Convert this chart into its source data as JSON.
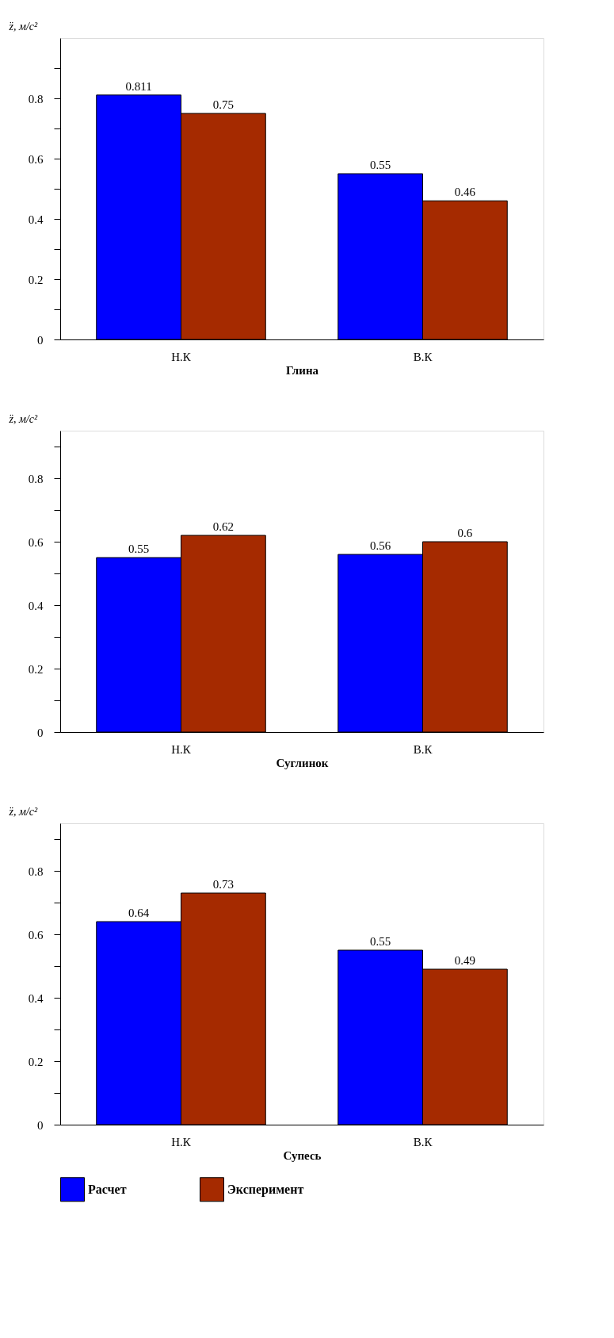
{
  "chart_data": [
    {
      "type": "bar",
      "ylabel": "z̈, м/с²",
      "xlabel": "Глина",
      "categories": [
        "Н.К",
        "В.К"
      ],
      "series": [
        {
          "color": "#0000ff",
          "values": [
            0.811,
            0.55
          ]
        },
        {
          "color": "#a52a00",
          "values": [
            0.75,
            0.46
          ]
        }
      ],
      "ylim": [
        0,
        1.0
      ],
      "yticks": [
        0,
        {
          "value": 0.1,
          "label": null
        },
        0.2,
        {
          "value": 0.3,
          "label": null
        },
        0.4,
        {
          "value": 0.5,
          "label": null
        },
        0.6,
        {
          "value": 0.7,
          "label": null
        },
        0.8,
        {
          "value": 0.9,
          "label": null
        }
      ],
      "data_labels": true,
      "grid": false,
      "legend": false
    },
    {
      "type": "bar",
      "ylabel": "z̈, м/с²",
      "xlabel": "Суглинок",
      "categories": [
        "Н.К",
        "В.К"
      ],
      "series": [
        {
          "color": "#0000ff",
          "values": [
            0.55,
            0.56
          ]
        },
        {
          "color": "#a52a00",
          "values": [
            0.62,
            0.6
          ]
        }
      ],
      "ylim": [
        0,
        0.95
      ],
      "yticks": [
        0,
        {
          "value": 0.1,
          "label": null
        },
        0.2,
        {
          "value": 0.3,
          "label": null
        },
        0.4,
        {
          "value": 0.5,
          "label": null
        },
        0.6,
        {
          "value": 0.7,
          "label": null
        },
        0.8,
        {
          "value": 0.9,
          "label": null
        }
      ],
      "data_labels": true,
      "grid": false,
      "legend": false
    },
    {
      "type": "bar",
      "ylabel": "z̈, м/с²",
      "xlabel": "Супесь",
      "categories": [
        "Н.К",
        "В.К"
      ],
      "series": [
        {
          "name": "Расчет",
          "color": "#0000ff",
          "values": [
            0.64,
            0.55
          ]
        },
        {
          "name": "Эксперимент",
          "color": "#a52a00",
          "values": [
            0.73,
            0.49
          ]
        }
      ],
      "ylim": [
        0,
        0.95
      ],
      "yticks": [
        0,
        {
          "value": 0.1,
          "label": null
        },
        0.2,
        {
          "value": 0.3,
          "label": null
        },
        0.4,
        {
          "value": 0.5,
          "label": null
        },
        0.6,
        {
          "value": 0.7,
          "label": null
        },
        0.8,
        {
          "value": 0.9,
          "label": null
        }
      ],
      "data_labels": true,
      "grid": false,
      "legend": "bottom"
    }
  ]
}
